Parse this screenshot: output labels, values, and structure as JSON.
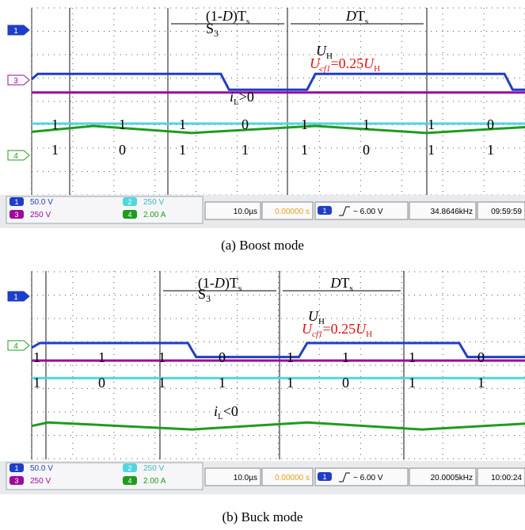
{
  "captions": [
    "(a)  Boost mode",
    "(b)  Buck mode"
  ],
  "chart_data": [
    {
      "type": "line",
      "caption": "(a)  Boost mode",
      "time_per_div": "10.0µs",
      "trigger_delay": "0.00000 s",
      "trigger_level": "− 6.00 V",
      "frequency": "34.8646kHz",
      "timestamp": "09:59:59",
      "channel_scales": [
        {
          "ch": "1",
          "scale": "50.0 V",
          "color": "#1e3ec8"
        },
        {
          "ch": "2",
          "scale": "250 V",
          "color": "#4fd6e0"
        },
        {
          "ch": "3",
          "scale": "250 V",
          "color": "#9c0a9c"
        },
        {
          "ch": "4",
          "scale": "2.00 A",
          "color": "#1f9b1f"
        }
      ],
      "side_markers": [
        "1",
        "3",
        "4"
      ],
      "annotations": {
        "period_off": "(1-D)Ts",
        "period_on": "DTs",
        "switch": "S3",
        "uh": "UH",
        "ucf1": "Ucf1=0.25UH",
        "il": "iL>0"
      },
      "state_rows": [
        [
          "1",
          "1",
          "1",
          "0",
          "1",
          "1",
          "1",
          "0"
        ],
        [
          "1",
          "0",
          "1",
          "1",
          "1",
          "0",
          "1",
          "1"
        ]
      ],
      "traces": {
        "s3_gate": {
          "t_div": [
            0,
            0.15,
            4.6,
            4.8,
            6.7,
            6.9,
            11.5,
            11.7,
            12
          ],
          "level_div": [
            0.95,
            1.18,
            1.18,
            0.5,
            0.5,
            1.18,
            1.18,
            0.5,
            0.5
          ]
        },
        "uh": {
          "level_div": 0.38
        },
        "ucf1": {
          "level_div": -0.95
        },
        "il": {
          "t_div": [
            0,
            1.5,
            3.9,
            6.9,
            9.6,
            12
          ],
          "level_div": [
            -1.3,
            -1.05,
            -1.35,
            -1.05,
            -1.35,
            -1.1
          ]
        }
      }
    },
    {
      "type": "line",
      "caption": "(b)  Buck mode",
      "time_per_div": "10.0µs",
      "trigger_delay": "0.00000 s",
      "trigger_level": "− 6.00 V",
      "frequency": "20.0005kHz",
      "timestamp": "10:00:24",
      "channel_scales": [
        {
          "ch": "1",
          "scale": "50.0 V",
          "color": "#1e3ec8"
        },
        {
          "ch": "2",
          "scale": "250 V",
          "color": "#4fd6e0"
        },
        {
          "ch": "3",
          "scale": "250 V",
          "color": "#9c0a9c"
        },
        {
          "ch": "4",
          "scale": "2.00 A",
          "color": "#1f9b1f"
        }
      ],
      "side_markers": [
        "1",
        "4"
      ],
      "annotations": {
        "period_off": "(1-D)Ts",
        "period_on": "DTs",
        "switch": "S3",
        "uh": "UH",
        "ucf1": "Ucf1=0.25UH",
        "il": "iL<0"
      },
      "state_rows": [
        [
          "1",
          "1",
          "1",
          "0",
          "1",
          "1",
          "1",
          "0"
        ],
        [
          "1",
          "0",
          "1",
          "1",
          "1",
          "0",
          "1",
          "1"
        ]
      ],
      "traces": {
        "s3_gate": {
          "t_div": [
            0,
            0.2,
            3.8,
            4.0,
            6.5,
            6.7,
            10.4,
            10.6,
            12
          ],
          "level_div": [
            0.75,
            0.95,
            0.95,
            0.35,
            0.35,
            0.95,
            0.95,
            0.35,
            0.35
          ]
        },
        "uh": {
          "level_div": 0.2
        },
        "ucf1": {
          "level_div": -0.55
        },
        "il": {
          "t_div": [
            0,
            0.4,
            3.9,
            6.7,
            9.5,
            12
          ],
          "level_div": [
            -2.6,
            -2.45,
            -2.75,
            -2.45,
            -2.75,
            -2.5
          ]
        }
      }
    }
  ]
}
